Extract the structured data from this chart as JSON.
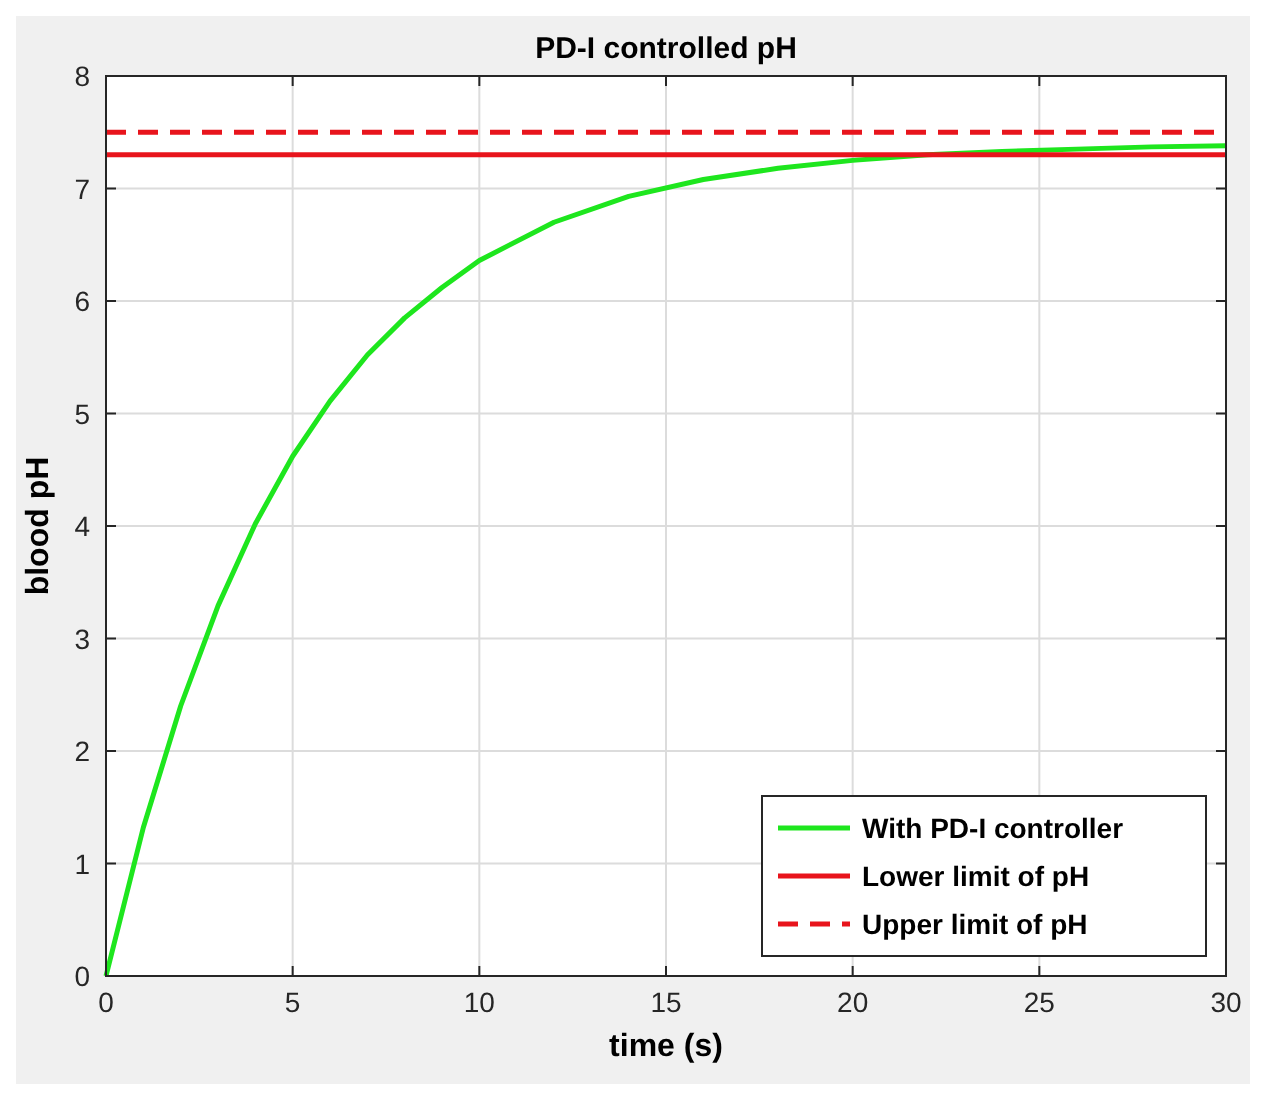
{
  "chart_data": {
    "type": "line",
    "title": "PD-I controlled pH",
    "xlabel": "time (s)",
    "ylabel": "blood pH",
    "xlim": [
      0,
      30
    ],
    "xticks": [
      0,
      5,
      10,
      15,
      20,
      25,
      30
    ],
    "ylim": [
      0,
      8
    ],
    "yticks": [
      0,
      1,
      2,
      3,
      4,
      5,
      6,
      7,
      8
    ],
    "grid": true,
    "legend": "bottom right",
    "series": [
      {
        "name": "With PD-I controller",
        "color": "#1ee61e",
        "line_style": "solid",
        "x": [
          0,
          1,
          2,
          3,
          4,
          5,
          6,
          7,
          8,
          9,
          10,
          12,
          14,
          16,
          18,
          20,
          22,
          24,
          26,
          28,
          30
        ],
        "values": [
          0,
          1.32,
          2.4,
          3.29,
          4.02,
          4.62,
          5.11,
          5.52,
          5.85,
          6.12,
          6.36,
          6.7,
          6.93,
          7.08,
          7.18,
          7.25,
          7.3,
          7.33,
          7.35,
          7.37,
          7.38
        ]
      },
      {
        "name": "Lower limit of pH",
        "color": "#e8141c",
        "line_style": "solid",
        "x": [
          0,
          30
        ],
        "values": [
          7.3,
          7.3
        ]
      },
      {
        "name": "Upper limit of pH",
        "color": "#e8141c",
        "line_style": "dashed",
        "x": [
          0,
          30
        ],
        "values": [
          7.5,
          7.5
        ]
      }
    ]
  }
}
